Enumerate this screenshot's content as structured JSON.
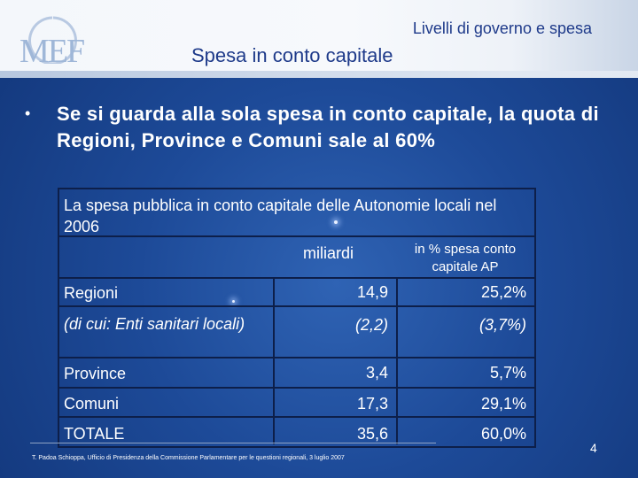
{
  "header": {
    "section_title": "Livelli di governo e spesa",
    "slide_title": "Spesa in conto capitale",
    "logo_text": "MEF"
  },
  "bullet": {
    "symbol": "•",
    "text": "Se si guarda alla sola spesa in conto capitale, la quota di Regioni, Province e Comuni sale al 60%"
  },
  "table": {
    "title": "La spesa pubblica in conto capitale delle Autonomie locali nel 2006",
    "columns": [
      "miliardi",
      "in % spesa conto capitale AP"
    ],
    "rows": [
      {
        "label": "Regioni",
        "miliardi": "14,9",
        "percent": "25,2%"
      },
      {
        "label": "(di cui: Enti sanitari locali)",
        "miliardi": "(2,2)",
        "percent": "(3,7%)"
      },
      {
        "label": "Province",
        "miliardi": "3,4",
        "percent": "5,7%"
      },
      {
        "label": "Comuni",
        "miliardi": "17,3",
        "percent": "29,1%"
      },
      {
        "label": "TOTALE",
        "miliardi": "35,6",
        "percent": "60,0%"
      }
    ]
  },
  "footer": {
    "note": "T. Padoa Schioppa, Ufficio di Presidenza della Commissione Parlamentare per le questioni regionali, 3 luglio 2007",
    "page_number": "4"
  }
}
